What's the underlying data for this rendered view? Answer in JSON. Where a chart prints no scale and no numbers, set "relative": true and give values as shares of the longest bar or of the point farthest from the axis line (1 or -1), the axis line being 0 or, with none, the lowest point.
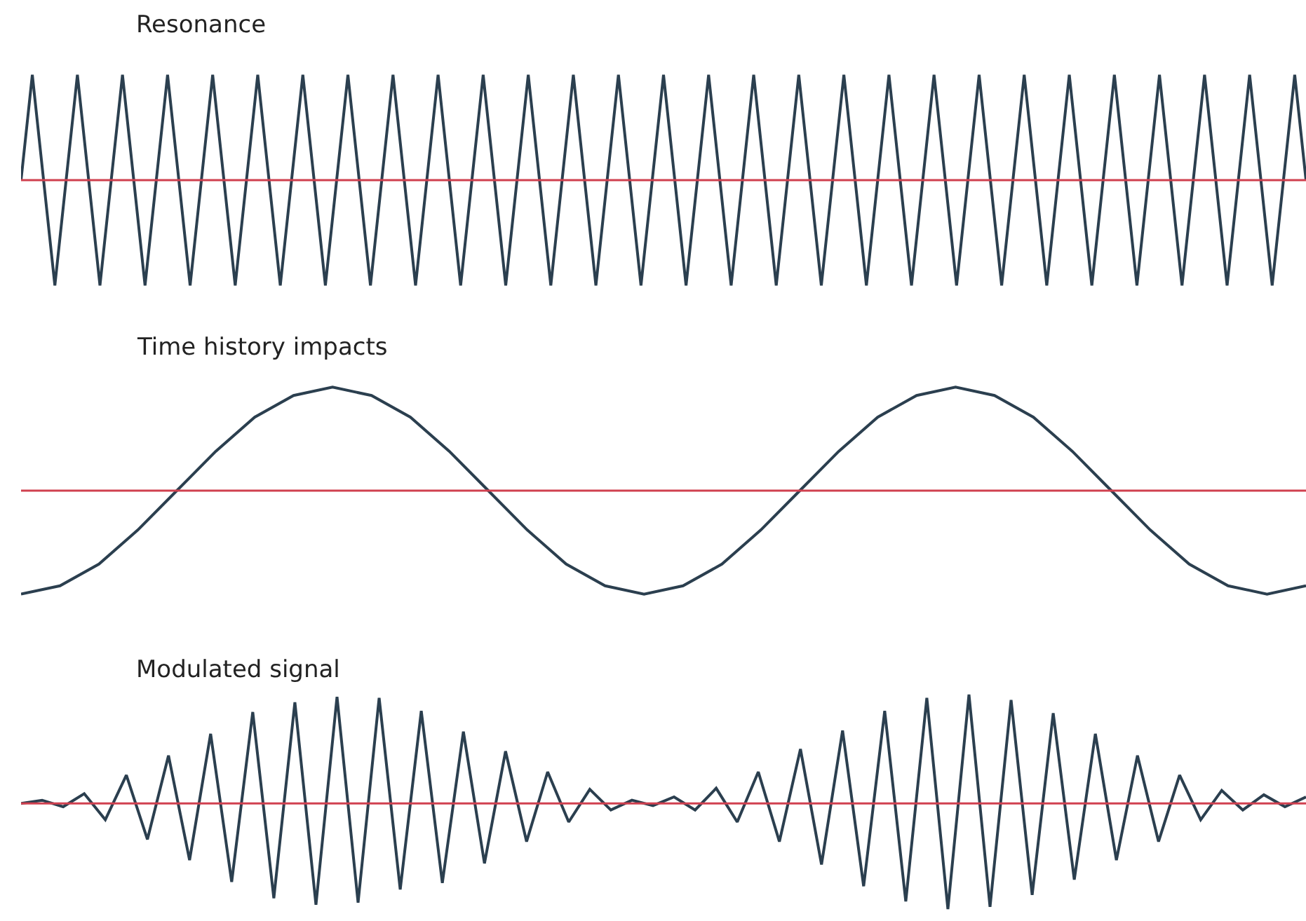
{
  "chart_data": [
    {
      "type": "line",
      "title": "Resonance",
      "relative": true,
      "categories": [
        null,
        null,
        null,
        null,
        null,
        null,
        null,
        null,
        null,
        null,
        null,
        null,
        null,
        null,
        null,
        null,
        null,
        null,
        null,
        null,
        null,
        null,
        null,
        null,
        null,
        null,
        null,
        null,
        null,
        null,
        null,
        null,
        null,
        null,
        null,
        null,
        null,
        null,
        null,
        null,
        null,
        null,
        null,
        null,
        null,
        null,
        null,
        null,
        null,
        null,
        null,
        null,
        null,
        null,
        null,
        null,
        null,
        null,
        null,
        null,
        null,
        null,
        null,
        null,
        null,
        null,
        null,
        null,
        null,
        null,
        null,
        null,
        null,
        null,
        null,
        null,
        null,
        null,
        null,
        null,
        null,
        null,
        null,
        null,
        null,
        null,
        null,
        null,
        null,
        null,
        null,
        null,
        null,
        null,
        null,
        null,
        null,
        null,
        null,
        null,
        null,
        null,
        null,
        null,
        null,
        null,
        null,
        null,
        null,
        null,
        null,
        null,
        null,
        null,
        null
      ],
      "series": [
        {
          "color": "#2b3f4f",
          "values": [
            0,
            1,
            0,
            -1,
            0,
            1,
            0,
            -1,
            0,
            1,
            0,
            -1,
            0,
            1,
            0,
            -1,
            0,
            1,
            0,
            -1,
            0,
            1,
            0,
            -1,
            0,
            1,
            0,
            -1,
            0,
            1,
            0,
            -1,
            0,
            1,
            0,
            -1,
            0,
            1,
            0,
            -1,
            0,
            1,
            0,
            -1,
            0,
            1,
            0,
            -1,
            0,
            1,
            0,
            -1,
            0,
            1,
            0,
            -1,
            0,
            1,
            0,
            -1,
            0,
            1,
            0,
            -1,
            0,
            1,
            0,
            -1,
            0,
            1,
            0,
            -1,
            0,
            1,
            0,
            -1,
            0,
            1,
            0,
            -1,
            0,
            1,
            0,
            -1,
            0,
            1,
            0,
            -1,
            0,
            1,
            0,
            -1,
            0,
            1,
            0,
            -1,
            0,
            1,
            0,
            -1,
            0,
            1,
            0,
            -1,
            0,
            1,
            0,
            -1,
            0,
            1,
            0,
            -1,
            0,
            1,
            0
          ]
        }
      ],
      "ref_lines": [
        {
          "axis": "y",
          "value": 0,
          "color": "#d0404f"
        }
      ]
    },
    {
      "type": "line",
      "title": "Time history impacts",
      "relative": true,
      "categories": [
        null,
        null,
        null,
        null,
        null,
        null,
        null,
        null,
        null,
        null,
        null,
        null,
        null,
        null,
        null,
        null,
        null,
        null,
        null,
        null,
        null,
        null,
        null,
        null,
        null,
        null,
        null,
        null,
        null,
        null,
        null,
        null,
        null,
        null
      ],
      "series": [
        {
          "color": "#2b3f4f",
          "values": [
            -1,
            -0.92,
            -0.71,
            -0.38,
            0,
            0.38,
            0.71,
            0.92,
            1,
            0.92,
            0.71,
            0.38,
            0,
            -0.38,
            -0.71,
            -0.92,
            -1,
            -0.92,
            -0.71,
            -0.38,
            0,
            0.38,
            0.71,
            0.92,
            1,
            0.92,
            0.71,
            0.38,
            0,
            -0.38,
            -0.71,
            -0.92,
            -1,
            -0.92
          ]
        }
      ],
      "ref_lines": [
        {
          "axis": "y",
          "value": 0,
          "color": "#d0404f"
        }
      ]
    },
    {
      "type": "line",
      "title": "Modulated signal",
      "relative": true,
      "categories": [
        null,
        null,
        null,
        null,
        null,
        null,
        null,
        null,
        null,
        null,
        null,
        null,
        null,
        null,
        null,
        null,
        null,
        null,
        null,
        null,
        null,
        null,
        null,
        null,
        null,
        null,
        null,
        null,
        null,
        null,
        null,
        null,
        null,
        null,
        null,
        null,
        null,
        null,
        null,
        null,
        null,
        null,
        null,
        null,
        null,
        null,
        null,
        null,
        null,
        null,
        null,
        null,
        null,
        null,
        null,
        null,
        null,
        null,
        null,
        null,
        null,
        null
      ],
      "series": [
        {
          "color": "#2b3f4f",
          "values": [
            0,
            0.03,
            -0.03,
            0.09,
            -0.15,
            0.26,
            -0.33,
            0.44,
            -0.52,
            0.64,
            -0.72,
            0.84,
            -0.87,
            0.93,
            -0.93,
            0.98,
            -0.91,
            0.97,
            -0.79,
            0.85,
            -0.73,
            0.66,
            -0.55,
            0.48,
            -0.35,
            0.29,
            -0.17,
            0.13,
            -0.06,
            0.03,
            -0.02,
            0.06,
            -0.06,
            0.14,
            -0.17,
            0.29,
            -0.35,
            0.5,
            -0.56,
            0.67,
            -0.76,
            0.85,
            -0.9,
            0.97,
            -0.97,
            1,
            -0.95,
            0.95,
            -0.84,
            0.83,
            -0.7,
            0.64,
            -0.52,
            0.44,
            -0.35,
            0.26,
            -0.15,
            0.12,
            -0.06,
            0.08,
            -0.03,
            0.06
          ]
        }
      ],
      "ref_lines": [
        {
          "axis": "y",
          "value": 0,
          "color": "#d0404f"
        }
      ]
    }
  ]
}
